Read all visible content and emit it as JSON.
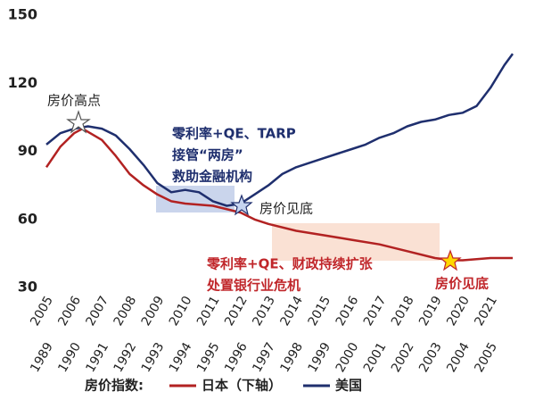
{
  "chart_data": {
    "type": "line",
    "annotations": {
      "peak": "房价高点",
      "us_policy_1": "零利率+QE、TARP",
      "us_policy_2": "接管“两房”",
      "us_policy_3": "救助金融机构",
      "us_bottom": "房价见底",
      "jp_policy_1": "零利率+QE、财政持续扩张",
      "jp_policy_2": "处置银行业危机",
      "jp_bottom": "房价见底"
    },
    "legend_title": "房价指数:",
    "xlim": [
      2005,
      2021.8
    ],
    "xticks": [
      2005,
      2006,
      2007,
      2008,
      2009,
      2010,
      2011,
      2012,
      2013,
      2014,
      2015,
      2016,
      2017,
      2018,
      2019,
      2020,
      2021
    ],
    "x2lim": [
      1989,
      2005.8
    ],
    "x2ticks": [
      1989,
      1990,
      1991,
      1992,
      1993,
      1994,
      1995,
      1996,
      1997,
      1998,
      1999,
      2000,
      2001,
      2002,
      2003,
      2004,
      2005
    ],
    "ylim": [
      30,
      150
    ],
    "yticks": [
      30,
      60,
      90,
      120,
      150
    ],
    "grid": false,
    "series": [
      {
        "name": "日本（下轴）",
        "color": "#b22222",
        "axis": "x2",
        "x": [
          1989,
          1989.5,
          1990,
          1990.3,
          1991,
          1991.5,
          1992,
          1992.5,
          1993,
          1993.5,
          1994,
          1995,
          1996,
          1996.5,
          1997,
          1998,
          1999,
          2000,
          2001,
          2002,
          2003,
          2003.6,
          2004,
          2005,
          2005.8
        ],
        "values": [
          83,
          92,
          98,
          100,
          95,
          88,
          80,
          75,
          71,
          68,
          67,
          66,
          63,
          60,
          58,
          55,
          53,
          51,
          49,
          46,
          43,
          42,
          42,
          43,
          43
        ]
      },
      {
        "name": "美国",
        "color": "#1f2f6e",
        "x": [
          2005,
          2005.5,
          2006,
          2006.5,
          2007,
          2007.5,
          2008,
          2008.5,
          2009,
          2009.5,
          2010,
          2010.5,
          2011,
          2011.5,
          2012,
          2012.5,
          2013,
          2013.5,
          2014,
          2014.5,
          2015,
          2015.5,
          2016,
          2016.5,
          2017,
          2017.5,
          2018,
          2018.5,
          2019,
          2019.5,
          2020,
          2020.5,
          2021,
          2021.5,
          2021.8
        ],
        "values": [
          93,
          98,
          100,
          101,
          100,
          97,
          91,
          84,
          76,
          72,
          73,
          72,
          68,
          66,
          67,
          71,
          75,
          80,
          83,
          85,
          87,
          89,
          91,
          93,
          96,
          98,
          101,
          103,
          104,
          106,
          107,
          110,
          118,
          128,
          133
        ]
      }
    ]
  }
}
